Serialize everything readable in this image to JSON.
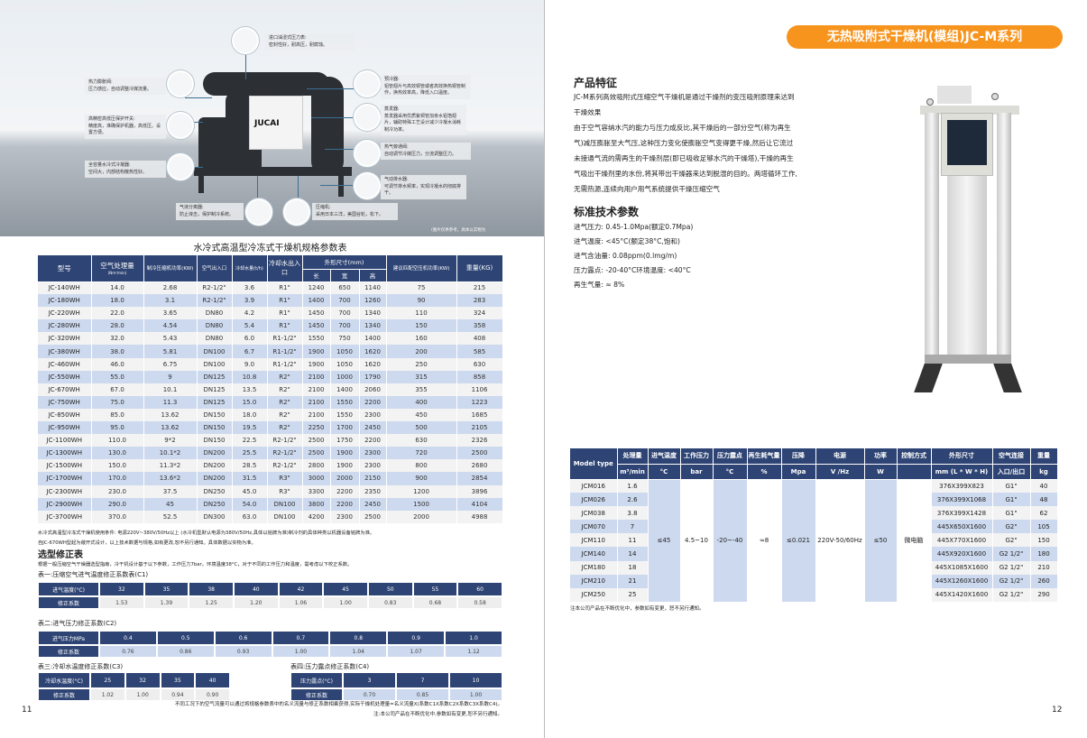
{
  "left_page": {
    "brand": "JUCAI",
    "image_note": "(图片仅供参考，具体以实物为",
    "callouts": [
      {
        "title": "进口油浸式压力表:",
        "desc": "密封性好，耐高压，耐腐蚀。"
      },
      {
        "title": "热力膨胀阀:",
        "desc": "压力感应，自动调整冷媒流量。"
      },
      {
        "title": "高精密高低压保护开关:",
        "desc": "精度高，准确保护机器，高低压。设置方便。"
      },
      {
        "title": "全容量水冷式冷凝器:",
        "desc": "空间大，内部结构散热性好。"
      },
      {
        "title": "预冷器:",
        "desc": "铝管翅片与高效铜管或者高效换热铜管制作，换热效率高，降低入口温度。"
      },
      {
        "title": "蒸发器:",
        "desc": "蒸发器采用优质紫铜管加亲水铝箔翅片，辅助特殊工艺设计减少冷凝水消耗制冷功率。"
      },
      {
        "title": "热气旁通阀:",
        "desc": "自动调节冷媒压力，分流调整压力。"
      },
      {
        "title": "气动排水器:",
        "desc": "可调节排水频率，实现冷凝水的彻底排干。"
      },
      {
        "title": "气液分离器:",
        "desc": "防止液击，保护制冷系统。"
      },
      {
        "title": "压缩机:",
        "desc": "采用日本三洋，美国谷轮，松下。"
      }
    ],
    "main_table": {
      "title": "水冷式高温型冷冻式干燥机规格参数表",
      "headers": {
        "model": "型号",
        "air": "空气处理量",
        "air_unit": "(Nm³/min)",
        "power": "制冷压缩机功率(KW)",
        "air_io": "空气出入口",
        "water": "冷却水量(t/h)",
        "water_io": "冷却水出入口",
        "dims": "外形尺寸(mm)",
        "l": "长",
        "w": "宽",
        "h": "高",
        "comp": "建议匹配空压机功率(KW)",
        "weight": "重量(KG)"
      },
      "rows": [
        [
          "JC-140WH",
          "14.0",
          "2.68",
          "R2-1/2\"",
          "3.6",
          "R1\"",
          "1240",
          "650",
          "1140",
          "75",
          "215"
        ],
        [
          "JC-180WH",
          "18.0",
          "3.1",
          "R2-1/2\"",
          "3.9",
          "R1\"",
          "1400",
          "700",
          "1260",
          "90",
          "283"
        ],
        [
          "JC-220WH",
          "22.0",
          "3.65",
          "DN80",
          "4.2",
          "R1\"",
          "1450",
          "700",
          "1340",
          "110",
          "324"
        ],
        [
          "JC-280WH",
          "28.0",
          "4.54",
          "DN80",
          "5.4",
          "R1\"",
          "1450",
          "700",
          "1340",
          "150",
          "358"
        ],
        [
          "JC-320WH",
          "32.0",
          "5.43",
          "DN80",
          "6.0",
          "R1-1/2\"",
          "1550",
          "750",
          "1400",
          "160",
          "408"
        ],
        [
          "JC-380WH",
          "38.0",
          "5.81",
          "DN100",
          "6.7",
          "R1-1/2\"",
          "1900",
          "1050",
          "1620",
          "200",
          "585"
        ],
        [
          "JC-460WH",
          "46.0",
          "6.75",
          "DN100",
          "9.0",
          "R1-1/2\"",
          "1900",
          "1050",
          "1620",
          "250",
          "630"
        ],
        [
          "JC-550WH",
          "55.0",
          "9",
          "DN125",
          "10.8",
          "R2\"",
          "2100",
          "1000",
          "1790",
          "315",
          "858"
        ],
        [
          "JC-670WH",
          "67.0",
          "10.1",
          "DN125",
          "13.5",
          "R2\"",
          "2100",
          "1400",
          "2060",
          "355",
          "1106"
        ],
        [
          "JC-750WH",
          "75.0",
          "11.3",
          "DN125",
          "15.0",
          "R2\"",
          "2100",
          "1550",
          "2200",
          "400",
          "1223"
        ],
        [
          "JC-850WH",
          "85.0",
          "13.62",
          "DN150",
          "18.0",
          "R2\"",
          "2100",
          "1550",
          "2300",
          "450",
          "1685"
        ],
        [
          "JC-950WH",
          "95.0",
          "13.62",
          "DN150",
          "19.5",
          "R2\"",
          "2250",
          "1700",
          "2450",
          "500",
          "2105"
        ],
        [
          "JC-1100WH",
          "110.0",
          "9*2",
          "DN150",
          "22.5",
          "R2-1/2\"",
          "2500",
          "1750",
          "2200",
          "630",
          "2326"
        ],
        [
          "JC-1300WH",
          "130.0",
          "10.1*2",
          "DN200",
          "25.5",
          "R2-1/2\"",
          "2500",
          "1900",
          "2300",
          "720",
          "2500"
        ],
        [
          "JC-1500WH",
          "150.0",
          "11.3*2",
          "DN200",
          "28.5",
          "R2-1/2\"",
          "2800",
          "1900",
          "2300",
          "800",
          "2680"
        ],
        [
          "JC-1700WH",
          "170.0",
          "13.6*2",
          "DN200",
          "31.5",
          "R3\"",
          "3000",
          "2000",
          "2150",
          "900",
          "2854"
        ],
        [
          "JC-2300WH",
          "230.0",
          "37.5",
          "DN250",
          "45.0",
          "R3\"",
          "3300",
          "2200",
          "2350",
          "1200",
          "3896"
        ],
        [
          "JC-2900WH",
          "290.0",
          "45",
          "DN250",
          "54.0",
          "DN100",
          "3800",
          "2200",
          "2450",
          "1500",
          "4104"
        ],
        [
          "JC-3700WH",
          "370.0",
          "52.5",
          "DN300",
          "63.0",
          "DN100",
          "4200",
          "2300",
          "2500",
          "2000",
          "4988"
        ]
      ],
      "notes": [
        "水冷式高温型冷冻式干燥机使用条件: 电源220V~380V/50Hz以上 (水冷机型默认电源为380V/50Hz,具体以铭牌为准)制冷剂的具体种类以机器设备铭牌为准。",
        "自JC-670WH型起为敞开式设计，以上技术数据与规格,如有更改,恕不另行通知。具体数据以实物为准。"
      ]
    },
    "correction": {
      "heading": "选型修正表",
      "intro": "根据一般压缩空气干燥器选型指南，冷干机设计基于以下参数，工作压力7bar，环境温度38°C，对于不同的工作压力和温度，需考虑以下校正系数。",
      "t1": {
        "title": "表一:压缩空气进气温度修正系数表(C1)",
        "h": "进气温度(°C)",
        "r": "修正系数",
        "x": [
          "32",
          "35",
          "38",
          "40",
          "42",
          "45",
          "50",
          "55",
          "60"
        ],
        "y": [
          "1.53",
          "1.39",
          "1.25",
          "1.20",
          "1.06",
          "1.00",
          "0.83",
          "0.68",
          "0.58"
        ]
      },
      "t2": {
        "title": "表二:进气压力修正系数(C2)",
        "h": "进气压力MPa",
        "r": "修正系数",
        "x": [
          "0.4",
          "0.5",
          "0.6",
          "0.7",
          "0.8",
          "0.9",
          "1.0"
        ],
        "y": [
          "0.76",
          "0.86",
          "0.93",
          "1.00",
          "1.04",
          "1.07",
          "1.12"
        ]
      },
      "t3": {
        "title": "表三:冷却水温度修正系数(C3)",
        "h": "冷却水温度(°C)",
        "r": "修正系数",
        "x": [
          "25",
          "32",
          "35",
          "40"
        ],
        "y": [
          "1.02",
          "1.00",
          "0.94",
          "0.90"
        ]
      },
      "t4": {
        "title": "表四:压力露点修正系数(C4)",
        "h": "压力露点(°C)",
        "r": "修正系数",
        "x": [
          "3",
          "7",
          "10"
        ],
        "y": [
          "0.70",
          "0.85",
          "1.00"
        ]
      },
      "footer1": "不同工况下的空气流量可以通过将规格参数表中的名义流量与修正系数相乘获得,实际干燥机处理量=名义流量X(系数C1X系数C2X系数C3X系数C4)。",
      "footer2": "注:本公司产品在不断优化中,参数如有变更,恕不另行通知。"
    },
    "page_number": "11"
  },
  "right_page": {
    "banner": "无热吸附式干燥机(模组)JC-M系列",
    "colors": {
      "banner": "#f7941d",
      "navy": "#2e4474",
      "stripe": "#ccd9ee"
    },
    "features_heading": "产品特征",
    "features_lines": [
      "JC-M系列高效吸附式压缩空气干燥机是通过干燥剂的变压吸附原理来达到",
      "干燥效果",
      "由于空气容纳水汽的能力与压力成反比,其干燥后的一部分空气(称为再生",
      "气)减压膨胀至大气压,这种压力变化使膨胀空气变得更干燥,然后让它流过",
      "未接通气流的需再生的干燥剂层(即已吸收足够水汽的干燥塔),干燥的再生",
      "气吸出干燥剂里的水份,将其带出干燥器来达到脱湿的目的。两塔循环工作,",
      "无需热源,连续向用户用气系统提供干燥压缩空气"
    ],
    "params_heading": "标准技术参数",
    "params": [
      "进气压力: 0.45-1.0Mpa(额定0.7Mpa)",
      "进气温度: <45°C(额定38°C,饱和)",
      "进气含油量: 0.08ppm(0.lmg/m)",
      "压力露点: -20-40°C环境温度: <40°C",
      "再生气量: ≈ 8%"
    ],
    "table": {
      "h1": [
        "Model type",
        "处理量",
        "进气温度",
        "工作压力",
        "压力露点",
        "再生耗气量",
        "压降",
        "电源",
        "功率",
        "控制方式",
        "外形尺寸",
        "空气连接",
        "重量"
      ],
      "h2": [
        "m³/min",
        "°C",
        "bar",
        "°C",
        "%",
        "Mpa",
        "V /Hz",
        "W",
        "",
        "mm (L * W * H)",
        "入口/出口",
        "kg"
      ],
      "models": [
        "JCM016",
        "JCM026",
        "JCM038",
        "JCM070",
        "JCM110",
        "JCM140",
        "JCM180",
        "JCM210",
        "JCM250"
      ],
      "flow": [
        "1.6",
        "2.6",
        "3.8",
        "7",
        "11",
        "14",
        "18",
        "21",
        "25"
      ],
      "shared": [
        "≤45",
        "4.5~10",
        "-20~-40",
        "≈8",
        "≤0.021",
        "220V-50/60Hz",
        "≤50",
        "微电脑"
      ],
      "dims": [
        "376X399X823",
        "376X399X1068",
        "376X399X1428",
        "445X650X1600",
        "445X770X1600",
        "445X920X1600",
        "445X1085X1600",
        "445X1260X1600",
        "445X1420X1600"
      ],
      "conn": [
        "G1\"",
        "G1\"",
        "G1\"",
        "G2\"",
        "G2\"",
        "G2 1/2\"",
        "G2 1/2\"",
        "G2 1/2\"",
        "G2 1/2\""
      ],
      "weight": [
        "40",
        "48",
        "62",
        "105",
        "150",
        "180",
        "210",
        "260",
        "290"
      ],
      "note": "注本公司产品在不断优化中，参数如有变更，恕不另行通知。"
    },
    "page_number": "12"
  }
}
